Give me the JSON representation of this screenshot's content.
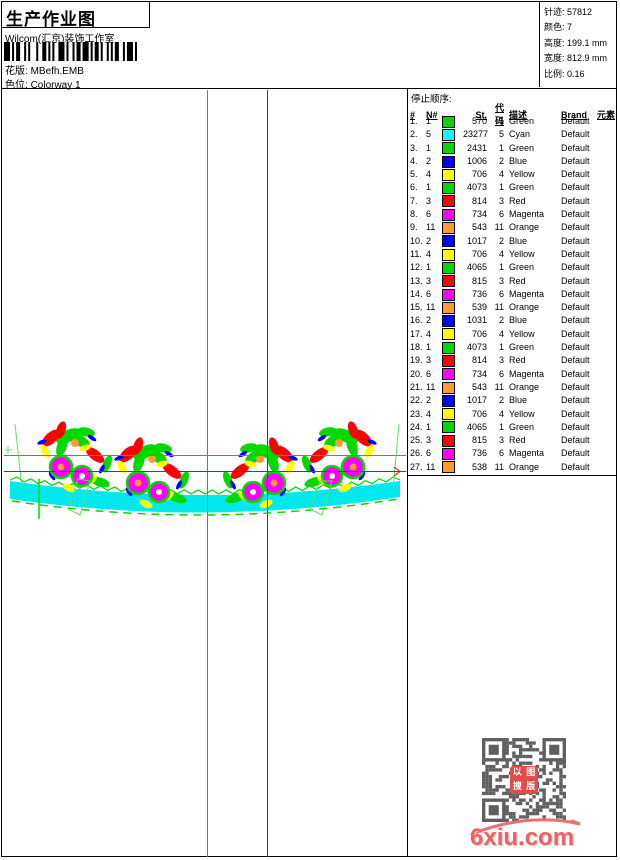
{
  "header": {
    "title": "生产作业图",
    "studio": "Wilcom(汇京)装饰工作室",
    "pattern_label": "花版:",
    "pattern_value": "MBefh.EMB",
    "colorway_label": "色位:",
    "colorway_value": "Colorway 1"
  },
  "info_panel": {
    "lines": [
      {
        "label": "针迹:",
        "value": "57812"
      },
      {
        "label": "颜色:",
        "value": "7"
      },
      {
        "label": "高度:",
        "value": "199.1 mm"
      },
      {
        "label": "宽度:",
        "value": "812.9 mm"
      },
      {
        "label": "比例:",
        "value": "0.16"
      }
    ]
  },
  "stop_sequence": {
    "title": "停止顺序:",
    "columns": [
      "#",
      "N#",
      "St.",
      "代码",
      "描述",
      "Brand",
      "元素"
    ],
    "rows": [
      {
        "idx": "1.",
        "n": "1",
        "swatch": "#00d800",
        "st": "570",
        "code": "1",
        "desc": "Green",
        "brand": "Default"
      },
      {
        "idx": "2.",
        "n": "5",
        "swatch": "#00ffff",
        "st": "23277",
        "code": "5",
        "desc": "Cyan",
        "brand": "Default"
      },
      {
        "idx": "3.",
        "n": "1",
        "swatch": "#00d800",
        "st": "2431",
        "code": "1",
        "desc": "Green",
        "brand": "Default"
      },
      {
        "idx": "4.",
        "n": "2",
        "swatch": "#0000ff",
        "st": "1006",
        "code": "2",
        "desc": "Blue",
        "brand": "Default"
      },
      {
        "idx": "5.",
        "n": "4",
        "swatch": "#ffff00",
        "st": "706",
        "code": "4",
        "desc": "Yellow",
        "brand": "Default"
      },
      {
        "idx": "6.",
        "n": "1",
        "swatch": "#00d800",
        "st": "4073",
        "code": "1",
        "desc": "Green",
        "brand": "Default"
      },
      {
        "idx": "7.",
        "n": "3",
        "swatch": "#ff0000",
        "st": "814",
        "code": "3",
        "desc": "Red",
        "brand": "Default"
      },
      {
        "idx": "8.",
        "n": "6",
        "swatch": "#ff00ff",
        "st": "734",
        "code": "6",
        "desc": "Magenta",
        "brand": "Default"
      },
      {
        "idx": "9.",
        "n": "11",
        "swatch": "#ff9933",
        "st": "543",
        "code": "11",
        "desc": "Orange",
        "brand": "Default"
      },
      {
        "idx": "10.",
        "n": "2",
        "swatch": "#0000ff",
        "st": "1017",
        "code": "2",
        "desc": "Blue",
        "brand": "Default"
      },
      {
        "idx": "11.",
        "n": "4",
        "swatch": "#ffff00",
        "st": "706",
        "code": "4",
        "desc": "Yellow",
        "brand": "Default"
      },
      {
        "idx": "12.",
        "n": "1",
        "swatch": "#00d800",
        "st": "4065",
        "code": "1",
        "desc": "Green",
        "brand": "Default"
      },
      {
        "idx": "13.",
        "n": "3",
        "swatch": "#ff0000",
        "st": "815",
        "code": "3",
        "desc": "Red",
        "brand": "Default"
      },
      {
        "idx": "14.",
        "n": "6",
        "swatch": "#ff00ff",
        "st": "736",
        "code": "6",
        "desc": "Magenta",
        "brand": "Default"
      },
      {
        "idx": "15.",
        "n": "11",
        "swatch": "#ff9933",
        "st": "539",
        "code": "11",
        "desc": "Orange",
        "brand": "Default"
      },
      {
        "idx": "16.",
        "n": "2",
        "swatch": "#0000ff",
        "st": "1031",
        "code": "2",
        "desc": "Blue",
        "brand": "Default"
      },
      {
        "idx": "17.",
        "n": "4",
        "swatch": "#ffff00",
        "st": "706",
        "code": "4",
        "desc": "Yellow",
        "brand": "Default"
      },
      {
        "idx": "18.",
        "n": "1",
        "swatch": "#00d800",
        "st": "4073",
        "code": "1",
        "desc": "Green",
        "brand": "Default"
      },
      {
        "idx": "19.",
        "n": "3",
        "swatch": "#ff0000",
        "st": "814",
        "code": "3",
        "desc": "Red",
        "brand": "Default"
      },
      {
        "idx": "20.",
        "n": "6",
        "swatch": "#ff00ff",
        "st": "734",
        "code": "6",
        "desc": "Magenta",
        "brand": "Default"
      },
      {
        "idx": "21.",
        "n": "11",
        "swatch": "#ff9933",
        "st": "543",
        "code": "11",
        "desc": "Orange",
        "brand": "Default"
      },
      {
        "idx": "22.",
        "n": "2",
        "swatch": "#0000ff",
        "st": "1017",
        "code": "2",
        "desc": "Blue",
        "brand": "Default"
      },
      {
        "idx": "23.",
        "n": "4",
        "swatch": "#ffff00",
        "st": "706",
        "code": "4",
        "desc": "Yellow",
        "brand": "Default"
      },
      {
        "idx": "24.",
        "n": "1",
        "swatch": "#00d800",
        "st": "4065",
        "code": "1",
        "desc": "Green",
        "brand": "Default"
      },
      {
        "idx": "25.",
        "n": "3",
        "swatch": "#ff0000",
        "st": "815",
        "code": "3",
        "desc": "Red",
        "brand": "Default"
      },
      {
        "idx": "26.",
        "n": "6",
        "swatch": "#ff00ff",
        "st": "736",
        "code": "6",
        "desc": "Magenta",
        "brand": "Default"
      },
      {
        "idx": "27.",
        "n": "11",
        "swatch": "#ff9933",
        "st": "538",
        "code": "11",
        "desc": "Orange",
        "brand": "Default"
      }
    ]
  },
  "design": {
    "green": "#00d800",
    "cyan": "#00e8ee",
    "magenta": "#ff00ff",
    "red": "#ff0000",
    "yellow": "#ffff00",
    "blue": "#0000ff",
    "orange": "#ff9933",
    "guide_green": "#00cc00",
    "guide_red": "#e60000",
    "pale_green": "#66dd66"
  },
  "watermark": {
    "site": "6xiu.com",
    "seal_chars": [
      "以",
      "图",
      "搜",
      "版"
    ]
  }
}
